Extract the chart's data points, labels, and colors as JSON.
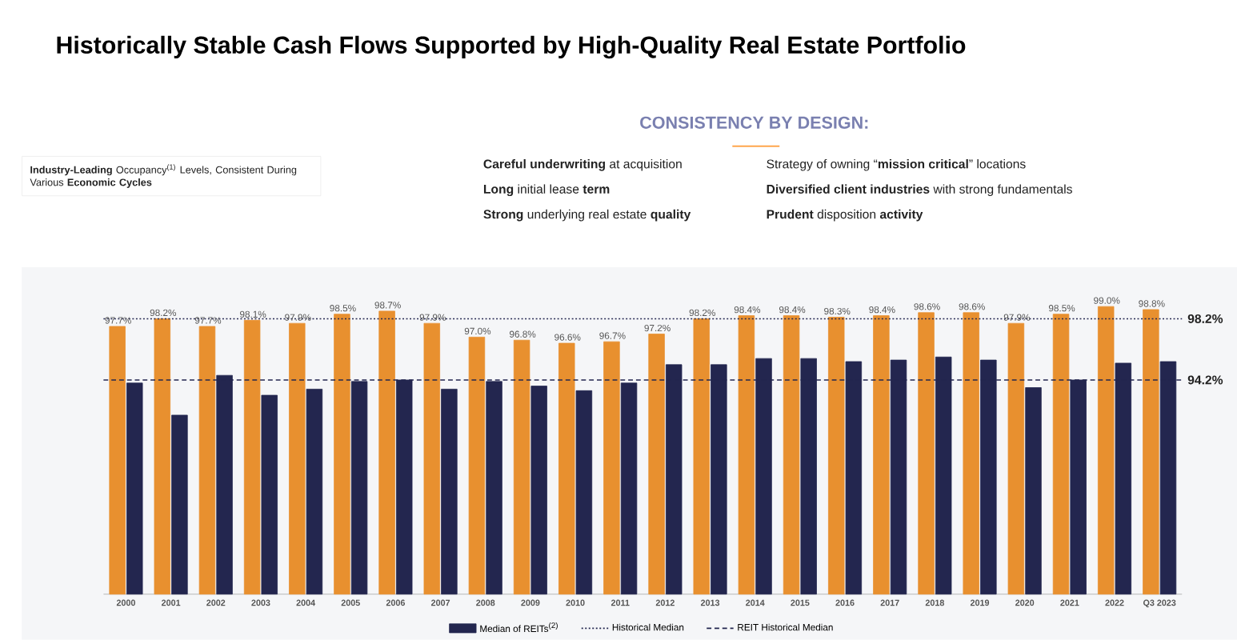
{
  "chart_data": {
    "type": "bar",
    "title": "Historically Stable Cash Flows Supported by High-Quality Real Estate Portfolio",
    "subtitle": "CONSISTENCY BY DESIGN:",
    "annotations": [
      "**Industry-Leading** Occupancy$^{(1)}$ Levels, Consistent During Various **Economic Cycles**",
      "**Careful underwriting** at acquisition",
      "**Long** initial lease **term**",
      "**Strong** underlying real estate **quality**",
      "Strategy of owning “**mission critical**” locations",
      "**Diversified client industries** with strong fundamentals",
      "**Prudent** disposition **activity**",
      "98.2%",
      "94.2%"
    ],
    "categories": [
      "2000",
      "2001",
      "2002",
      "2003",
      "2004",
      "2005",
      "2006",
      "2007",
      "2008",
      "2009",
      "2010",
      "2011",
      "2012",
      "2013",
      "2014",
      "2015",
      "2016",
      "2017",
      "2018",
      "2019",
      "2020",
      "2021",
      "2022",
      "Q3 2023"
    ],
    "series": [
      {
        "color": "#e8902f",
        "values": [
          97.7,
          98.2,
          97.7,
          98.1,
          97.9,
          98.5,
          98.7,
          97.9,
          97.0,
          96.8,
          96.6,
          96.7,
          97.2,
          98.2,
          98.4,
          98.4,
          98.3,
          98.4,
          98.6,
          98.6,
          97.9,
          98.5,
          99.0,
          98.8
        ],
        "value_labels": [
          "97.7%",
          "98.2%",
          "97.7%",
          "98.1%",
          "97.9%",
          "98.5%",
          "98.7%",
          "97.9%",
          "97.0%",
          "96.8%",
          "96.6%",
          "96.7%",
          "97.2%",
          "98.2%",
          "98.4%",
          "98.4%",
          "98.3%",
          "98.4%",
          "98.6%",
          "98.6%",
          "97.9%",
          "98.5%",
          "99.0%",
          "98.8%"
        ]
      },
      {
        "name": "Median of REITs$^{(2)}$",
        "color": "#23264f",
        "values": [
          94.0,
          91.9,
          94.5,
          93.2,
          93.6,
          94.1,
          94.2,
          93.6,
          94.1,
          93.8,
          93.5,
          94.0,
          95.2,
          95.2,
          95.6,
          95.6,
          95.4,
          95.5,
          95.7,
          95.5,
          93.7,
          94.2,
          95.3,
          95.4
        ]
      }
    ],
    "ylim": [
      80.2,
      99.0
    ],
    "tick_labels": "x",
    "legend": "bottom",
    "ref_lines": [
      {
        "axis": "y",
        "value": 98.2,
        "label": "Historical Median",
        "line_style": "dotted",
        "color": "#23264f"
      },
      {
        "axis": "y",
        "value": 94.2,
        "label": "REIT Historical Median",
        "line_style": "dashed",
        "color": "#23264f"
      }
    ]
  }
}
